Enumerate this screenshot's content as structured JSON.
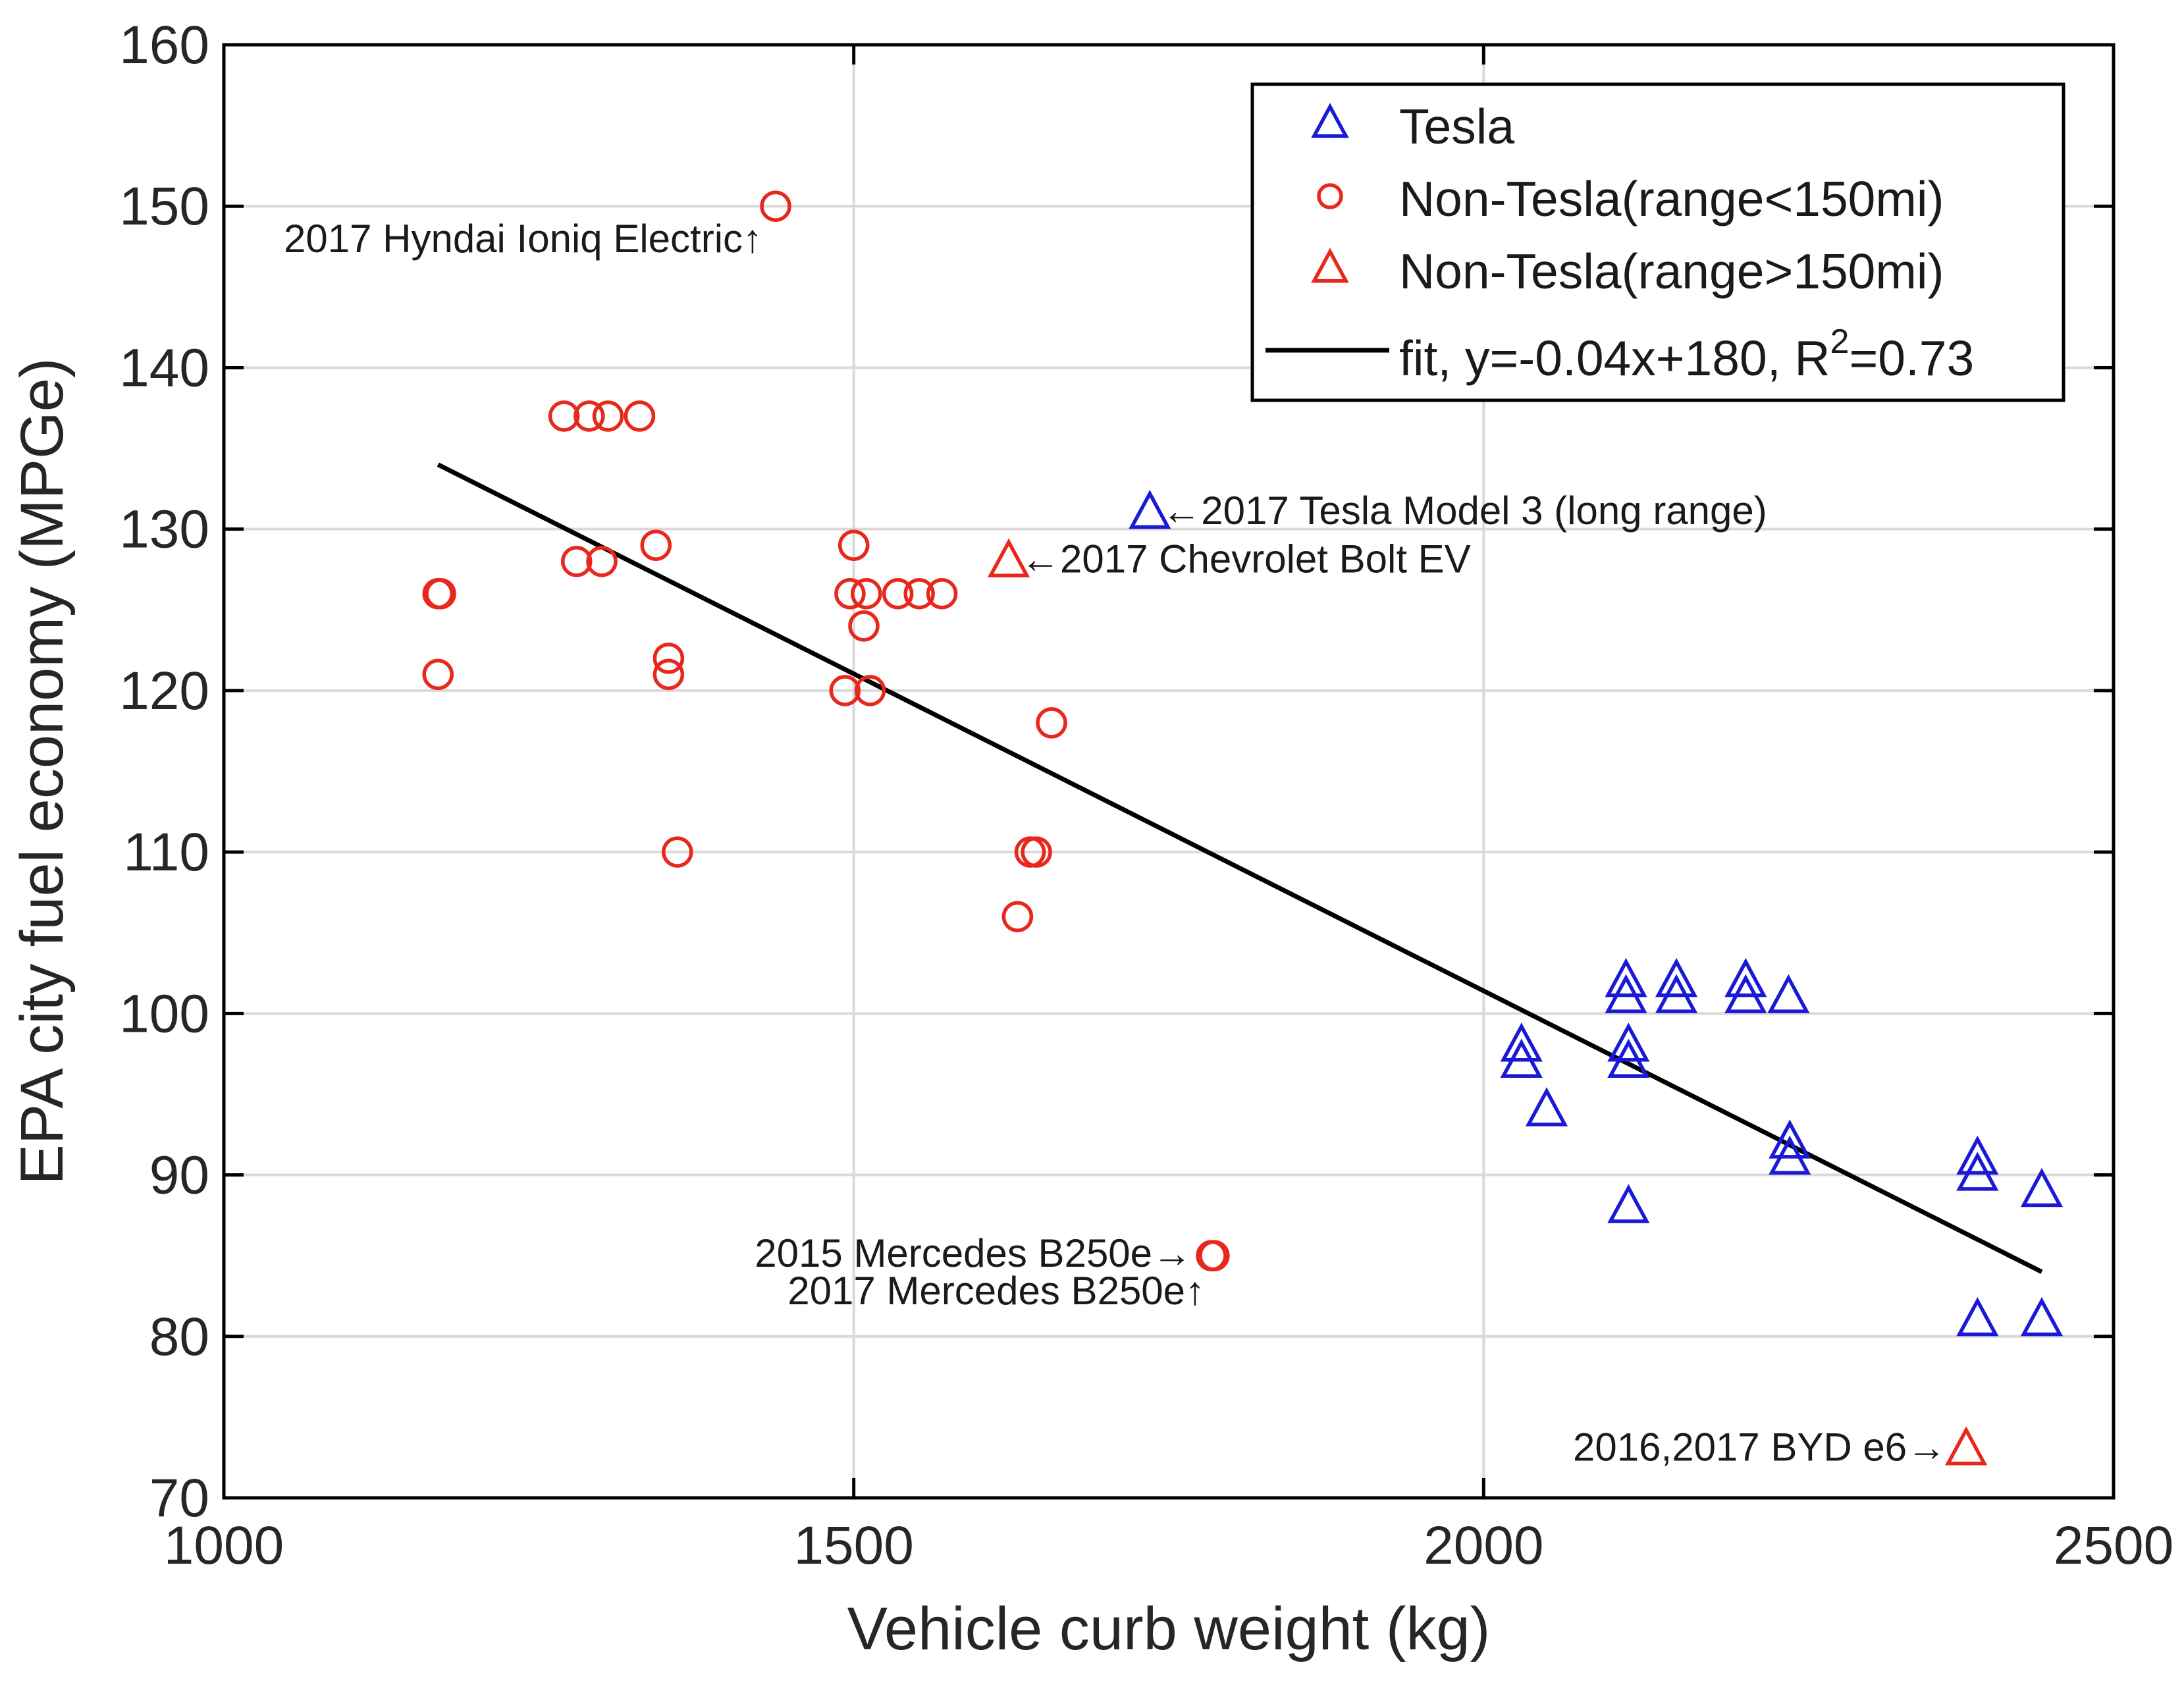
{
  "chart_data": {
    "type": "scatter",
    "xlabel": "Vehicle curb weight (kg)",
    "ylabel": "EPA city fuel economy (MPGe)",
    "xlim": [
      1000,
      2500
    ],
    "ylim": [
      70,
      160
    ],
    "xticks": [
      1000,
      1500,
      2000,
      2500
    ],
    "yticks": [
      70,
      80,
      90,
      100,
      110,
      120,
      130,
      140,
      150,
      160
    ],
    "grid": true,
    "legend_position": "top-right",
    "series": [
      {
        "name": "Tesla",
        "marker": "triangle",
        "color": "#1a1ad6",
        "points": [
          [
            2030,
            98
          ],
          [
            2030,
            97
          ],
          [
            2050,
            94
          ],
          [
            2113,
            102
          ],
          [
            2113,
            101
          ],
          [
            2115,
            98
          ],
          [
            2115,
            97
          ],
          [
            2115,
            88
          ],
          [
            2153,
            102
          ],
          [
            2153,
            101
          ],
          [
            2208,
            102
          ],
          [
            2208,
            101
          ],
          [
            2242,
            101
          ],
          [
            2243,
            92
          ],
          [
            2243,
            91
          ],
          [
            2392,
            91
          ],
          [
            2392,
            90
          ],
          [
            2392,
            81
          ],
          [
            2443,
            89
          ],
          [
            2443,
            81
          ],
          [
            1735,
            131
          ]
        ]
      },
      {
        "name": "Non-Tesla(range<150mi)",
        "marker": "circle",
        "color": "#e8281c",
        "points": [
          [
            1170,
            126
          ],
          [
            1172,
            126
          ],
          [
            1170,
            121
          ],
          [
            1270,
            137
          ],
          [
            1290,
            137
          ],
          [
            1305,
            137
          ],
          [
            1330,
            137
          ],
          [
            1280,
            128
          ],
          [
            1300,
            128
          ],
          [
            1343,
            129
          ],
          [
            1353,
            122
          ],
          [
            1353,
            121
          ],
          [
            1360,
            110
          ],
          [
            1438,
            150
          ],
          [
            1493,
            120
          ],
          [
            1513,
            120
          ],
          [
            1497,
            126
          ],
          [
            1510,
            126
          ],
          [
            1535,
            126
          ],
          [
            1552,
            126
          ],
          [
            1570,
            126
          ],
          [
            1500,
            129
          ],
          [
            1508,
            124
          ],
          [
            1640,
            110
          ],
          [
            1645,
            110
          ],
          [
            1630,
            106
          ],
          [
            1657,
            118
          ],
          [
            1784,
            85
          ],
          [
            1786,
            85
          ]
        ]
      },
      {
        "name": "Non-Tesla(range>150mi)",
        "marker": "triangle",
        "color": "#e8281c",
        "points": [
          [
            1623,
            128
          ],
          [
            2383,
            73
          ]
        ]
      },
      {
        "name": "fit, y=-0.04x+180, R²=0.73",
        "type": "line",
        "color": "#000000",
        "points": [
          [
            1170,
            134
          ],
          [
            2443,
            84
          ]
        ]
      }
    ],
    "legend": [
      {
        "label": "Tesla",
        "marker": "triangle",
        "color": "#1a1ad6"
      },
      {
        "label": "Non-Tesla(range<150mi)",
        "marker": "circle",
        "color": "#e8281c"
      },
      {
        "label": "Non-Tesla(range>150mi)",
        "marker": "triangle",
        "color": "#e8281c"
      },
      {
        "label_main": "fit, y=-0.04x+180, R",
        "label_sup": "2",
        "label_tail": "=0.73",
        "marker": "line",
        "color": "#000000"
      }
    ],
    "annotations": [
      {
        "text": "2017 Hyndai Ioniq Electric↑",
        "x": 1438,
        "y": 150,
        "anchor": "end"
      },
      {
        "text": "←2017 Tesla Model 3 (long range)",
        "x": 1735,
        "y": 131,
        "anchor": "start"
      },
      {
        "text": "←2017 Chevrolet Bolt EV",
        "x": 1623,
        "y": 128,
        "anchor": "start"
      },
      {
        "text": "2015 Mercedes B250e→",
        "x": 1784,
        "y": 85,
        "anchor": "end"
      },
      {
        "text": "2017 Mercedes B250e↑",
        "x": 1784,
        "y": 85,
        "anchor": "end"
      },
      {
        "text": "2016,2017 BYD e6→",
        "x": 2383,
        "y": 73,
        "anchor": "end"
      }
    ]
  }
}
